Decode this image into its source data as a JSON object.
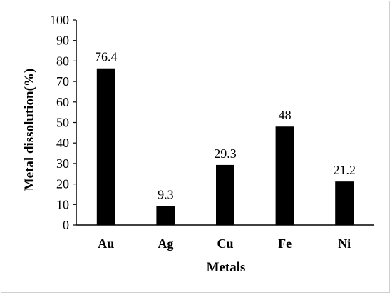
{
  "chart_data": {
    "type": "bar",
    "categories": [
      "Au",
      "Ag",
      "Cu",
      "Fe",
      "Ni"
    ],
    "values": [
      76.4,
      9.3,
      29.3,
      48,
      21.2
    ],
    "data_labels": [
      "76.4",
      "9.3",
      "29.3",
      "48",
      "21.2"
    ],
    "title": "",
    "xlabel": "Metals",
    "ylabel": "Metal dissolution(%)",
    "ylim": [
      0,
      100
    ],
    "yticks": [
      0,
      10,
      20,
      30,
      40,
      50,
      60,
      70,
      80,
      90,
      100
    ],
    "grid": false,
    "legend": "none",
    "bar_color": "#000000"
  }
}
